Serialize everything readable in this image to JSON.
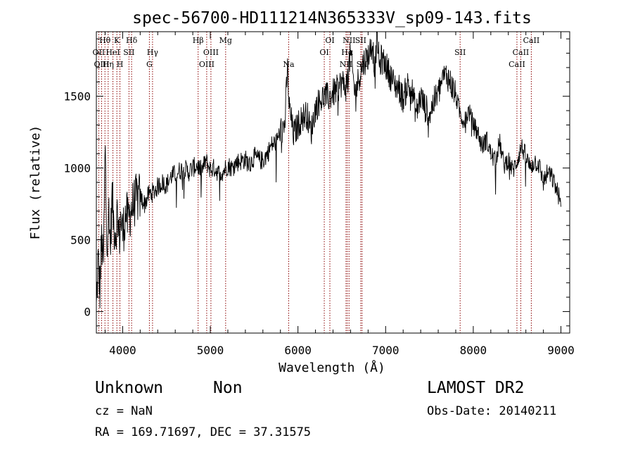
{
  "chart_data": {
    "type": "line",
    "title": "spec-56700-HD111214N365333V_sp09-143.fits",
    "xlabel": "Wavelength (Å)",
    "ylabel": "Flux (relative)",
    "xlim": [
      3700,
      9100
    ],
    "ylim": [
      -150,
      1950
    ],
    "xticks": [
      4000,
      5000,
      6000,
      7000,
      8000,
      9000
    ],
    "yticks": [
      0,
      500,
      1000,
      1500
    ],
    "grid": false,
    "line_color": "#000000",
    "marker_color": "#8b0000",
    "series": [
      {
        "x": [
          3700,
          3720,
          3740,
          3760,
          3780,
          3800,
          3820,
          3840,
          3860,
          3880,
          3900,
          3920,
          3940,
          3960,
          3980,
          4000,
          4020,
          4040,
          4060,
          4080,
          4100,
          4150,
          4200,
          4250,
          4300,
          4350,
          4400,
          4450,
          4500,
          4550,
          4600,
          4650,
          4700,
          4750,
          4800,
          4850,
          4900,
          4950,
          5000,
          5050,
          5100,
          5150,
          5200,
          5250,
          5300,
          5350,
          5400,
          5450,
          5500,
          5550,
          5600,
          5650,
          5700,
          5750,
          5800,
          5850,
          5880,
          5900,
          5920,
          5950,
          6000,
          6050,
          6100,
          6150,
          6200,
          6250,
          6300,
          6350,
          6400,
          6450,
          6500,
          6550,
          6600,
          6650,
          6700,
          6750,
          6800,
          6850,
          6880,
          6900,
          6930,
          6950,
          7000,
          7050,
          7100,
          7150,
          7200,
          7250,
          7300,
          7350,
          7400,
          7450,
          7500,
          7550,
          7600,
          7650,
          7700,
          7750,
          7800,
          7850,
          7900,
          7950,
          8000,
          8050,
          8100,
          8150,
          8200,
          8250,
          8300,
          8350,
          8400,
          8450,
          8500,
          8550,
          8600,
          8650,
          8700,
          8750,
          8800,
          8850,
          8900,
          8950,
          8980,
          9000
        ],
        "y": [
          0,
          350,
          150,
          500,
          300,
          1150,
          500,
          700,
          450,
          800,
          600,
          550,
          700,
          500,
          650,
          550,
          620,
          700,
          620,
          680,
          720,
          780,
          800,
          750,
          820,
          830,
          870,
          900,
          880,
          940,
          960,
          980,
          1000,
          970,
          1000,
          1020,
          980,
          1050,
          990,
          1000,
          960,
          980,
          1020,
          1000,
          1040,
          1050,
          1060,
          1020,
          1080,
          1060,
          1050,
          1100,
          1160,
          1180,
          1250,
          1300,
          1700,
          1420,
          1350,
          1230,
          1300,
          1350,
          1380,
          1250,
          1420,
          1470,
          1500,
          1490,
          1520,
          1550,
          1600,
          1560,
          1800,
          1520,
          1640,
          1740,
          1780,
          1870,
          1650,
          1950,
          1700,
          1760,
          1720,
          1650,
          1580,
          1560,
          1480,
          1580,
          1540,
          1380,
          1500,
          1420,
          1380,
          1460,
          1520,
          1620,
          1650,
          1580,
          1500,
          1380,
          1320,
          1400,
          1300,
          1250,
          1150,
          1200,
          1100,
          1050,
          1180,
          1020,
          1060,
          980,
          1050,
          1150,
          1080,
          1000,
          1050,
          1020,
          900,
          970,
          930,
          850,
          800,
          700
        ],
        "noise_amplitude": 70
      }
    ],
    "lines": [
      {
        "name": "Hθ",
        "x": 3798,
        "row": 0
      },
      {
        "name": "OII",
        "x": 3727,
        "row": 1
      },
      {
        "name": "OIII",
        "x": 3760,
        "row": 2
      },
      {
        "name": "Hη",
        "x": 3835,
        "row": 2
      },
      {
        "name": "HeI",
        "x": 3889,
        "row": 1
      },
      {
        "name": "K",
        "x": 3934,
        "row": 0
      },
      {
        "name": "H",
        "x": 3969,
        "row": 2
      },
      {
        "name": "SII",
        "x": 4072,
        "row": 1
      },
      {
        "name": "Hδ",
        "x": 4102,
        "row": 0
      },
      {
        "name": "Hγ",
        "x": 4341,
        "row": 1
      },
      {
        "name": "G",
        "x": 4305,
        "row": 2
      },
      {
        "name": "Hβ",
        "x": 4861,
        "row": 0
      },
      {
        "name": "OIII",
        "x": 4959,
        "row": 2
      },
      {
        "name": "OIII",
        "x": 5007,
        "row": 1
      },
      {
        "name": "Mg",
        "x": 5175,
        "row": 0
      },
      {
        "name": "Na",
        "x": 5894,
        "row": 2
      },
      {
        "name": "OI",
        "x": 6300,
        "row": 1
      },
      {
        "name": "OI",
        "x": 6364,
        "row": 0
      },
      {
        "name": "NII",
        "x": 6548,
        "row": 2
      },
      {
        "name": "Hα",
        "x": 6563,
        "row": 1
      },
      {
        "name": "NII",
        "x": 6583,
        "row": 0
      },
      {
        "name": "SII",
        "x": 6716,
        "row": 0
      },
      {
        "name": "SII",
        "x": 6731,
        "row": 2
      },
      {
        "name": "SII",
        "x": 7850,
        "row": 1
      },
      {
        "name": "CaII",
        "x": 8498,
        "row": 2
      },
      {
        "name": "CaII",
        "x": 8542,
        "row": 1
      },
      {
        "name": "CaII",
        "x": 8662,
        "row": 0
      }
    ]
  },
  "info": {
    "class": "Unknown",
    "subclass": "Non",
    "survey": "LAMOST DR2",
    "cz": "cz = NaN",
    "obs_date": "Obs-Date: 20140211",
    "coords": "RA = 169.71697, DEC =  37.31575"
  }
}
